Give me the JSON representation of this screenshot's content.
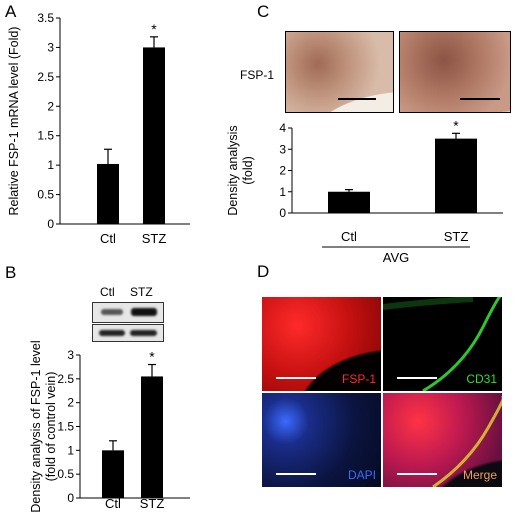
{
  "panels": {
    "a": {
      "letter": "A"
    },
    "b": {
      "letter": "B"
    },
    "c": {
      "letter": "C"
    },
    "d": {
      "letter": "D"
    }
  },
  "chart_data": [
    {
      "panel": "A",
      "type": "bar",
      "categories": [
        "Ctl",
        "STZ"
      ],
      "values": [
        1.02,
        3.0
      ],
      "errors": [
        0.25,
        0.18
      ],
      "significance": [
        "",
        "*"
      ],
      "ylabel": "Relative FSP-1 mRNA level (Fold)",
      "ylim": [
        0,
        3.5
      ],
      "yticks": [
        "0",
        "0.5",
        "1",
        "1.5",
        "2",
        "2.5",
        "3",
        "3.5"
      ]
    },
    {
      "panel": "B",
      "type": "bar",
      "categories": [
        "Ctl",
        "STZ"
      ],
      "values": [
        1.0,
        2.55
      ],
      "errors": [
        0.2,
        0.25
      ],
      "significance": [
        "",
        "*"
      ],
      "ylabel": "Density analysis of FSP-1 level",
      "ylabel2": "(fold of control vein)",
      "ylim": [
        0,
        3
      ],
      "yticks": [
        "0",
        "0.5",
        "1",
        "1.5",
        "2",
        "2.5",
        "3"
      ],
      "blot_labels": [
        "Ctl",
        "STZ"
      ]
    },
    {
      "panel": "C",
      "type": "bar",
      "categories": [
        "Ctl",
        "STZ"
      ],
      "values": [
        1.0,
        3.5
      ],
      "errors": [
        0.1,
        0.25
      ],
      "significance": [
        "",
        "*"
      ],
      "ylabel": "Density analysis",
      "ylabel2": "(fold)",
      "ylim": [
        0,
        4
      ],
      "yticks": [
        "0",
        "1",
        "2",
        "3",
        "4"
      ],
      "group_label": "AVG",
      "image_label": "FSP-1"
    }
  ],
  "panel_d": {
    "labels": [
      "FSP-1",
      "CD31",
      "DAPI",
      "Merge"
    ],
    "colors": {
      "fsp1": "#ff2a2a",
      "cd31": "#33dd33",
      "dapi": "#3b6bff",
      "merge": "#f0a060"
    }
  }
}
